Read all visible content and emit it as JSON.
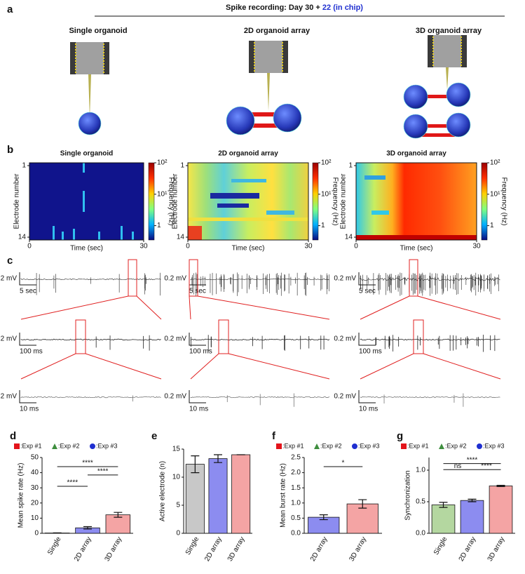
{
  "panel_a": {
    "letter": "a",
    "title": "Spike recording: Day 30 + ",
    "title_highlight": "22 (in chip)",
    "labels": [
      "Single organoid",
      "2D organoid array",
      "3D organoid array"
    ]
  },
  "panel_b": {
    "letter": "b",
    "titles": [
      "Single organoid",
      "2D organoid array",
      "3D organoid array"
    ],
    "ylabel": "Electrode number",
    "xlabel": "Time (sec)",
    "xticks": [
      0,
      30
    ],
    "yticks": [
      1,
      14
    ],
    "colorbar_label": "Frequency (Hz)",
    "colorbar_lim": [
      0.35,
      100
    ],
    "colorbar_log": true,
    "colorbar_ticks": [
      {
        "value": 100,
        "label": "10²"
      },
      {
        "value": 10,
        "label": "10¹"
      },
      1
    ]
  },
  "panel_c": {
    "letter": "c",
    "voltage_scale": "0.2 mV",
    "time_scales": [
      [
        "5 sec",
        "100 ms",
        "10 ms"
      ],
      [
        "5 sec",
        "100 ms",
        "10 ms"
      ],
      [
        "5 sec",
        "100 ms",
        "10 ms"
      ]
    ]
  },
  "chart_data": [
    {
      "type": "bar",
      "letter": "d",
      "ylabel": "Mean spike rate (Hz)",
      "categories": [
        "Single",
        "2D array",
        "3D array"
      ],
      "values": [
        0.2,
        3.6,
        12.2
      ],
      "errors": [
        0.1,
        0.8,
        1.6
      ],
      "colors": [
        "#c8c8c8",
        "#8c8cf0",
        "#f4a4a4"
      ],
      "ylim": [
        0,
        50
      ],
      "yticks": [
        0,
        10,
        20,
        30,
        40,
        50
      ],
      "legend": [
        {
          "name": ":Exp #1",
          "color": "#e3141b",
          "marker": "square"
        },
        {
          "name": ":Exp #2",
          "color": "#3e8e3e",
          "marker": "triangle"
        },
        {
          "name": ":Exp #3",
          "color": "#1f2fd0",
          "marker": "circle"
        }
      ],
      "annotations": [
        "****",
        "****",
        "****"
      ]
    },
    {
      "type": "bar",
      "letter": "e",
      "ylabel": "Active electrode (n)",
      "categories": [
        "Single",
        "2D array",
        "3D array"
      ],
      "values": [
        12.3,
        13.3,
        14
      ],
      "errors": [
        1.5,
        0.7,
        0
      ],
      "colors": [
        "#c8c8c8",
        "#8c8cf0",
        "#f4a4a4"
      ],
      "ylim": [
        0,
        15
      ],
      "yticks": [
        0,
        5,
        10,
        15
      ]
    },
    {
      "type": "bar",
      "letter": "f",
      "ylabel": "Mean burst rate (Hz)",
      "categories": [
        "2D array",
        "3D array"
      ],
      "values": [
        0.53,
        0.97
      ],
      "errors": [
        0.08,
        0.14
      ],
      "colors": [
        "#8c8cf0",
        "#f4a4a4"
      ],
      "ylim": [
        0,
        2.5
      ],
      "yticks": [
        {
          "value": 0,
          "label": "0.0"
        },
        0.5,
        {
          "value": 1,
          "label": "1.0"
        },
        1.5,
        {
          "value": 2,
          "label": "2.0"
        },
        2.5
      ],
      "legend": [
        {
          "name": ":Exp #1",
          "color": "#e3141b",
          "marker": "square"
        },
        {
          "name": ":Exp #2",
          "color": "#3e8e3e",
          "marker": "triangle"
        },
        {
          "name": ":Exp #3",
          "color": "#1f2fd0",
          "marker": "circle"
        }
      ],
      "annotations": [
        "*"
      ]
    },
    {
      "type": "bar",
      "letter": "g",
      "ylabel": "Synchronization",
      "categories": [
        "Single",
        "2D array",
        "3D array"
      ],
      "values": [
        0.45,
        0.52,
        0.75
      ],
      "errors": [
        0.04,
        0.02,
        0.01
      ],
      "colors": [
        "#b4d7a0",
        "#8c8cf0",
        "#f4a4a4"
      ],
      "ylim": [
        0,
        1.2
      ],
      "yticks": [
        {
          "value": 0,
          "label": "0.0"
        },
        0.5,
        {
          "value": 1,
          "label": "1.0"
        }
      ],
      "legend": [
        {
          "name": ":Exp #1",
          "color": "#e3141b",
          "marker": "square"
        },
        {
          "name": ":Exp #2",
          "color": "#3e8e3e",
          "marker": "triangle"
        },
        {
          "name": ":Exp #3",
          "color": "#1f2fd0",
          "marker": "circle"
        }
      ],
      "annotations": [
        "****",
        "ns",
        "****"
      ]
    }
  ]
}
